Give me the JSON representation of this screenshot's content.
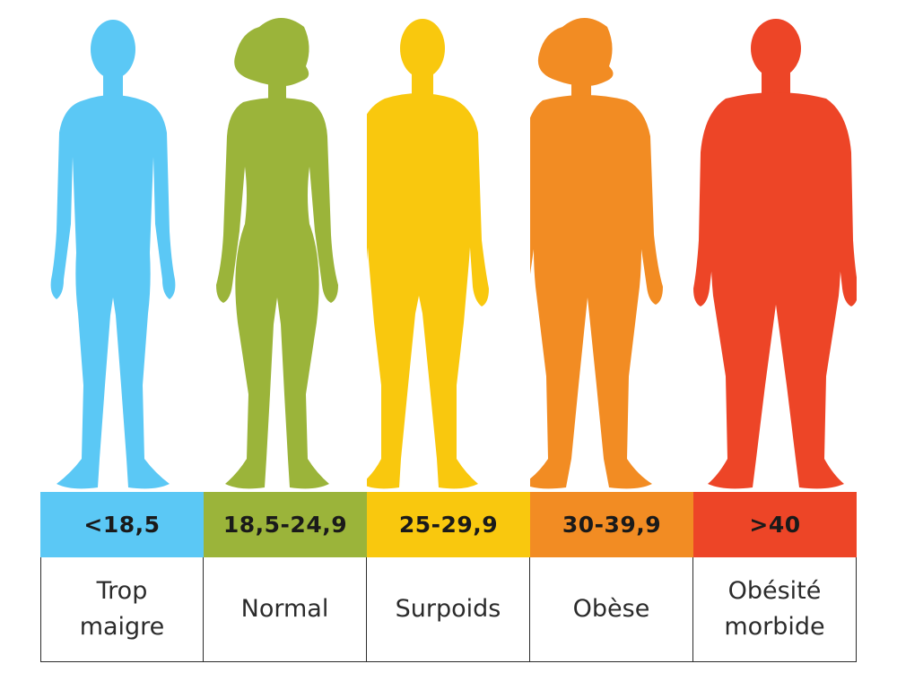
{
  "categories": [
    {
      "range": "<18,5",
      "label_lines": [
        "Trop",
        "maigre"
      ],
      "color": "#5bc8f5",
      "figure": "slim-male-silhouette"
    },
    {
      "range": "18,5-24,9",
      "label_lines": [
        "Normal"
      ],
      "color": "#9bb43a",
      "figure": "normal-female-silhouette"
    },
    {
      "range": "25-29,9",
      "label_lines": [
        "Surpoids"
      ],
      "color": "#f9c80e",
      "figure": "overweight-male-silhouette"
    },
    {
      "range": "30-39,9",
      "label_lines": [
        "Obèse"
      ],
      "color": "#f28c23",
      "figure": "obese-female-silhouette"
    },
    {
      "range": ">40",
      "label_lines": [
        "Obésité",
        "morbide"
      ],
      "color": "#ed4527",
      "figure": "morbidly-obese-male-silhouette"
    }
  ]
}
